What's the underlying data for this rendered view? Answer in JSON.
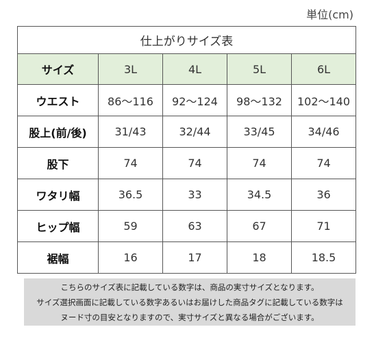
{
  "unit_label": "単位(cm)",
  "table": {
    "caption": "仕上がりサイズ表",
    "header_label": "サイズ",
    "columns": [
      "3L",
      "4L",
      "5L",
      "6L"
    ],
    "rows": [
      {
        "label": "ウエスト",
        "values": [
          "86～116",
          "92～124",
          "98～132",
          "102～140"
        ]
      },
      {
        "label": "股上(前/後)",
        "values": [
          "31/43",
          "32/44",
          "33/45",
          "34/46"
        ]
      },
      {
        "label": "股下",
        "values": [
          "74",
          "74",
          "74",
          "74"
        ]
      },
      {
        "label": "ワタリ幅",
        "values": [
          "36.5",
          "33",
          "34.5",
          "36"
        ]
      },
      {
        "label": "ヒップ幅",
        "values": [
          "59",
          "63",
          "67",
          "71"
        ]
      },
      {
        "label": "裾幅",
        "values": [
          "16",
          "17",
          "18",
          "18.5"
        ]
      }
    ]
  },
  "note": {
    "lines": [
      "こちらのサイズ表に記載している数字は、商品の実寸サイズとなります。",
      "サイズ選択画面に記載している数字あるいはお届けした商品タグに記載している数字は",
      "ヌード寸の目安となりますので、実寸サイズと異なる場合がございます。"
    ]
  },
  "colors": {
    "header_background": "#e2efda",
    "note_background": "#d9d9d9",
    "border": "#555555"
  }
}
